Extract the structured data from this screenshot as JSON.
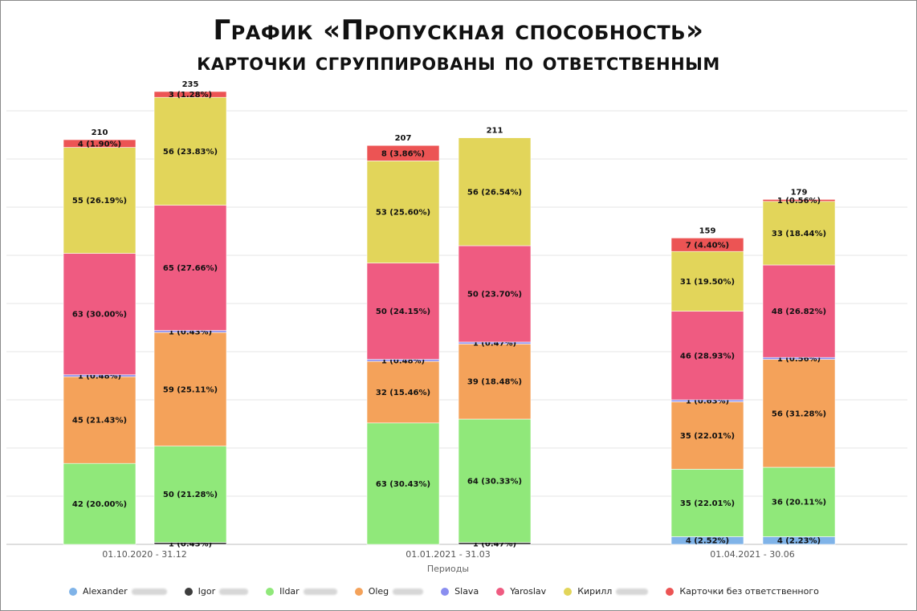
{
  "chart_data": {
    "type": "bar",
    "stacked": true,
    "title": "График «Пропускная способность»",
    "subtitle": "карточки сгруппированы по ответственным",
    "xlabel": "Периоды",
    "ylabel": "",
    "ylim": [
      0,
      250
    ],
    "grid": true,
    "legend_position": "bottom",
    "groups": [
      "01.10.2020 - 31.12",
      "01.01.2021 - 31.03",
      "01.04.2021 - 30.06"
    ],
    "bars": [
      {
        "group": 0,
        "total": "210"
      },
      {
        "group": 0,
        "total": "235"
      },
      {
        "group": 1,
        "total": "207"
      },
      {
        "group": 1,
        "total": "211"
      },
      {
        "group": 2,
        "total": "159"
      },
      {
        "group": 2,
        "total": "179"
      }
    ],
    "series": [
      {
        "name": "Alexander",
        "color": "#7fb3e8",
        "values": [
          0,
          0,
          0,
          0,
          4,
          4
        ],
        "labels": [
          "",
          "",
          "",
          "",
          "4 (2.52%)",
          "4 (2.23%)"
        ]
      },
      {
        "name": "Igor",
        "color": "#3d3d3d",
        "values": [
          0,
          1,
          0,
          1,
          0,
          0
        ],
        "labels": [
          "",
          "1 (0.43%)",
          "",
          "1 (0.47%)",
          "",
          ""
        ]
      },
      {
        "name": "Ildar",
        "color": "#90e87a",
        "values": [
          42,
          50,
          63,
          64,
          35,
          36
        ],
        "labels": [
          "42 (20.00%)",
          "50 (21.28%)",
          "63 (30.43%)",
          "64 (30.33%)",
          "35 (22.01%)",
          "36 (20.11%)"
        ]
      },
      {
        "name": "Oleg",
        "color": "#f4a25a",
        "values": [
          45,
          59,
          32,
          39,
          35,
          56
        ],
        "labels": [
          "45 (21.43%)",
          "59 (25.11%)",
          "32 (15.46%)",
          "39 (18.48%)",
          "35 (22.01%)",
          "56 (31.28%)"
        ]
      },
      {
        "name": "Slava",
        "color": "#8a8ef0",
        "values": [
          1,
          1,
          1,
          1,
          1,
          1
        ],
        "labels": [
          "1 (0.48%)",
          "1 (0.43%)",
          "1 (0.48%)",
          "1 (0.47%)",
          "1 (0.63%)",
          "1 (0.56%)"
        ]
      },
      {
        "name": "Yaroslav",
        "color": "#ef5b81",
        "values": [
          63,
          65,
          50,
          50,
          46,
          48
        ],
        "labels": [
          "63 (30.00%)",
          "65 (27.66%)",
          "50 (24.15%)",
          "50 (23.70%)",
          "46 (28.93%)",
          "48 (26.82%)"
        ]
      },
      {
        "name": "Кирилл",
        "color": "#e2d55a",
        "values": [
          55,
          56,
          53,
          56,
          31,
          33
        ],
        "labels": [
          "55 (26.19%)",
          "56 (23.83%)",
          "53 (25.60%)",
          "56 (26.54%)",
          "31 (19.50%)",
          "33 (18.44%)"
        ]
      },
      {
        "name": "Карточки без ответственного",
        "color": "#ec5454",
        "values": [
          4,
          3,
          8,
          0,
          7,
          1
        ],
        "labels": [
          "4 (1.90%)",
          "3 (1.28%)",
          "8 (3.86%)",
          "",
          "7 (4.40%)",
          "1 (0.56%)"
        ]
      }
    ]
  },
  "legend": [
    {
      "name": "Alexander",
      "color": "#7fb3e8",
      "blurred": true
    },
    {
      "name": "Igor",
      "color": "#3d3d3d",
      "blurred": true
    },
    {
      "name": "Ildar",
      "color": "#90e87a",
      "blurred": true
    },
    {
      "name": "Oleg",
      "color": "#f4a25a",
      "blurred": true
    },
    {
      "name": "Slava",
      "color": "#8a8ef0",
      "blurred": false
    },
    {
      "name": "Yaroslav",
      "color": "#ef5b81",
      "blurred": false
    },
    {
      "name": "Кирилл",
      "color": "#e2d55a",
      "blurred": true
    },
    {
      "name": "Карточки без ответственного",
      "color": "#ec5454",
      "blurred": false
    }
  ]
}
